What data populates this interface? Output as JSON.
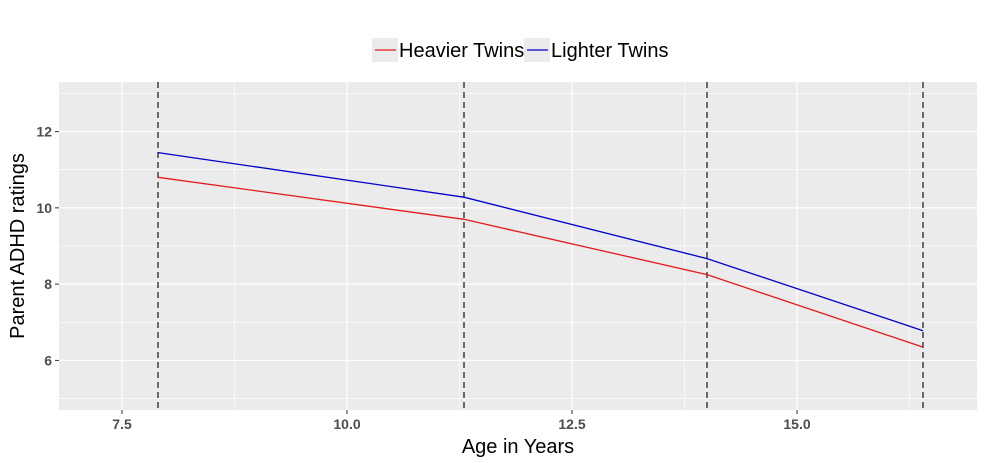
{
  "chart_data": {
    "type": "line",
    "title": "",
    "xlabel": "Age in Years",
    "ylabel": "Parent ADHD ratings",
    "xlim": [
      6.8,
      17.0
    ],
    "ylim": [
      4.7,
      13.3
    ],
    "x_ticks": [
      7.5,
      10.0,
      12.5,
      15.0
    ],
    "x_tick_labels": [
      "7.5",
      "10.0",
      "12.5",
      "15.0"
    ],
    "y_ticks": [
      6,
      8,
      10,
      12
    ],
    "y_tick_labels": [
      "6",
      "8",
      "10",
      "12"
    ],
    "grid": true,
    "legend_position": "top",
    "vlines": [
      7.9,
      11.3,
      14.0,
      16.4
    ],
    "series": [
      {
        "name": "Heavier Twins",
        "color": "#e41a1c",
        "x": [
          7.9,
          11.3,
          14.0,
          16.4
        ],
        "y": [
          10.8,
          9.7,
          8.25,
          6.35
        ]
      },
      {
        "name": "Lighter Twins",
        "color": "#0000cc",
        "x": [
          7.9,
          11.3,
          14.0,
          16.4
        ],
        "y": [
          11.45,
          10.28,
          8.67,
          6.78
        ]
      }
    ],
    "colors": {
      "panel_background": "#ebebeb",
      "grid": "#ffffff",
      "vline": "#000000"
    }
  }
}
